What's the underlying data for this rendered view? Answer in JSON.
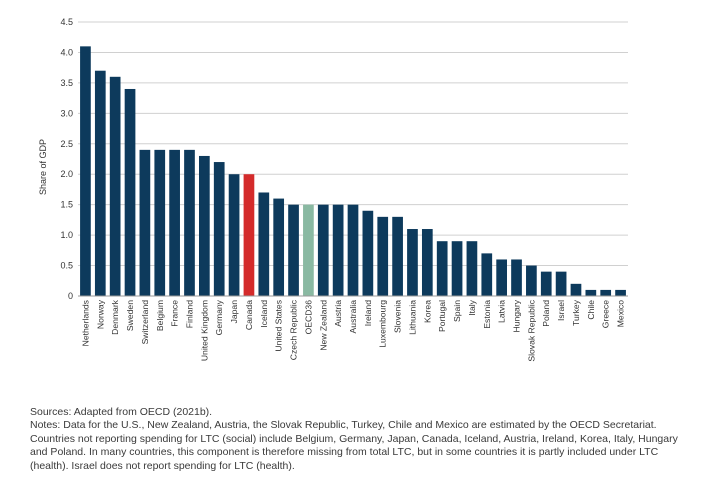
{
  "chart_data": {
    "type": "bar",
    "title": "",
    "xlabel": "",
    "ylabel": "Share of GDP",
    "ylim": [
      0,
      4.5
    ],
    "yticks": [
      "0",
      "0.5",
      "1.0",
      "1.5",
      "2.0",
      "2.5",
      "3.0",
      "3.5",
      "4.0",
      "4.5"
    ],
    "grid": true,
    "legend": "none",
    "colors": {
      "default": "#0d3a5c",
      "Canada": "#d42b2b",
      "OECD36": "#8ab9a2"
    },
    "categories": [
      "Netherlands",
      "Norway",
      "Denmark",
      "Sweden",
      "Switzerland",
      "Belgium",
      "France",
      "Finland",
      "United Kingdom",
      "Germany",
      "Japan",
      "Canada",
      "Iceland",
      "United States",
      "Czech Republic",
      "OECD36",
      "New Zealand",
      "Austria",
      "Australia",
      "Ireland",
      "Luxembourg",
      "Slovenia",
      "Lithuania",
      "Korea",
      "Portugal",
      "Spain",
      "Italy",
      "Estonia",
      "Latvia",
      "Hungary",
      "Slovak Republic",
      "Poland",
      "Israel",
      "Turkey",
      "Chile",
      "Greece",
      "Mexico"
    ],
    "values": [
      4.1,
      3.7,
      3.6,
      3.4,
      2.4,
      2.4,
      2.4,
      2.4,
      2.3,
      2.2,
      2.0,
      2.0,
      1.7,
      1.6,
      1.5,
      1.5,
      1.5,
      1.5,
      1.5,
      1.4,
      1.3,
      1.3,
      1.1,
      1.1,
      0.9,
      0.9,
      0.9,
      0.7,
      0.6,
      0.6,
      0.5,
      0.4,
      0.4,
      0.2,
      0.1,
      0.1,
      0.1
    ]
  },
  "notes": {
    "sources": "Sources: Adapted from OECD (2021b).",
    "body": "Notes: Data for the U.S., New Zealand, Austria, the Slovak Republic, Turkey, Chile and Mexico are estimated by the OECD Secretariat. Countries not reporting spending for LTC (social) include Belgium, Germany, Japan, Canada, Iceland, Austria, Ireland, Korea, Italy, Hungary and Poland. In many countries, this component is therefore missing from total LTC, but in some countries it is partly included under LTC (health). Israel does not report spending for LTC (health)."
  }
}
